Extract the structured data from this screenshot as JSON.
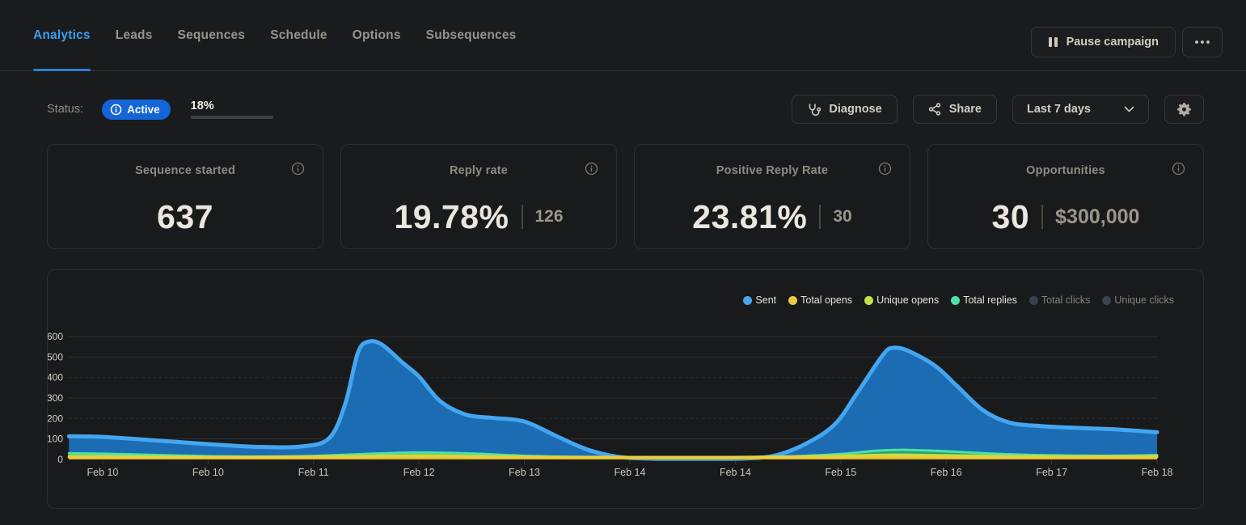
{
  "nav": {
    "tabs": [
      {
        "label": "Analytics",
        "active": true
      },
      {
        "label": "Leads",
        "active": false
      },
      {
        "label": "Sequences",
        "active": false
      },
      {
        "label": "Schedule",
        "active": false
      },
      {
        "label": "Options",
        "active": false
      },
      {
        "label": "Subsequences",
        "active": false
      }
    ],
    "pause_button_label": "Pause campaign",
    "more_button_label": "•••"
  },
  "status_bar": {
    "label": "Status:",
    "badge_label": "Active",
    "badge_color": "#1465d8",
    "progress_text": "18%",
    "progress_value": 18,
    "progress_color": "#27a45c",
    "diagnose_label": "Diagnose",
    "share_label": "Share",
    "date_range_value": "Last 7 days"
  },
  "stats": [
    {
      "label": "Sequence started",
      "value": "637",
      "secondary": ""
    },
    {
      "label": "Reply rate",
      "value": "19.78%",
      "secondary": "126"
    },
    {
      "label": "Positive Reply Rate",
      "value": "23.81%",
      "secondary": "30"
    },
    {
      "label": "Opportunities",
      "value": "30",
      "secondary": "$300,000"
    }
  ],
  "icons": {
    "pause": "two-vertical-bars",
    "more": "ellipsis",
    "info": "circled-i",
    "diagnose": "stethoscope",
    "share": "share-nodes",
    "chevron": "chevron-down",
    "gear": "gear"
  },
  "chart_data": {
    "type": "area",
    "title": "",
    "xlabel": "",
    "ylabel": "",
    "x_labels": [
      "Feb 10",
      "Feb 10",
      "Feb 11",
      "Feb 12",
      "Feb 13",
      "Feb 14",
      "Feb 14",
      "Feb 15",
      "Feb 16",
      "Feb 17",
      "Feb 18"
    ],
    "ylim": [
      0,
      600
    ],
    "yticks": [
      0,
      100,
      200,
      300,
      400,
      500,
      600
    ],
    "grid": true,
    "legend_position": "top-right",
    "legend": [
      {
        "label": "Sent",
        "color": "#45a6f0",
        "active": true
      },
      {
        "label": "Total opens",
        "color": "#ecc843",
        "active": true
      },
      {
        "label": "Unique opens",
        "color": "#c6e03f",
        "active": true
      },
      {
        "label": "Total replies",
        "color": "#4be3a4",
        "active": true
      },
      {
        "label": "Total clicks",
        "color": "#39424e",
        "active": false
      },
      {
        "label": "Unique clicks",
        "color": "#39424e",
        "active": false
      }
    ],
    "series": [
      {
        "name": "Sent",
        "stroke": "#45a6f0",
        "fill": "#1c6cb4",
        "stroke_width": 5,
        "points": [
          [
            -0.32,
            113
          ],
          [
            0,
            110
          ],
          [
            0.5,
            93
          ],
          [
            1,
            75
          ],
          [
            1.5,
            61
          ],
          [
            1.9,
            64
          ],
          [
            2.15,
            105
          ],
          [
            2.3,
            270
          ],
          [
            2.42,
            520
          ],
          [
            2.52,
            575
          ],
          [
            2.65,
            560
          ],
          [
            2.85,
            470
          ],
          [
            3,
            405
          ],
          [
            3.2,
            285
          ],
          [
            3.45,
            218
          ],
          [
            3.7,
            203
          ],
          [
            4,
            185
          ],
          [
            4.3,
            115
          ],
          [
            4.6,
            48
          ],
          [
            4.9,
            12
          ],
          [
            5.2,
            4
          ],
          [
            5.6,
            3
          ],
          [
            6.1,
            5
          ],
          [
            6.4,
            22
          ],
          [
            6.7,
            85
          ],
          [
            6.95,
            175
          ],
          [
            7.15,
            320
          ],
          [
            7.4,
            510
          ],
          [
            7.5,
            545
          ],
          [
            7.65,
            528
          ],
          [
            7.9,
            455
          ],
          [
            8.1,
            360
          ],
          [
            8.35,
            240
          ],
          [
            8.6,
            180
          ],
          [
            8.9,
            163
          ],
          [
            9.3,
            153
          ],
          [
            9.6,
            147
          ],
          [
            10,
            133
          ]
        ]
      },
      {
        "name": "Total replies",
        "stroke": "#4be3a4",
        "fill": "#27a277",
        "stroke_width": 3,
        "points": [
          [
            -0.32,
            30
          ],
          [
            0,
            28
          ],
          [
            0.5,
            22
          ],
          [
            1,
            16
          ],
          [
            1.5,
            14
          ],
          [
            2,
            17
          ],
          [
            2.5,
            27
          ],
          [
            3,
            34
          ],
          [
            3.5,
            29
          ],
          [
            4,
            18
          ],
          [
            4.5,
            11
          ],
          [
            5,
            8
          ],
          [
            5.5,
            7
          ],
          [
            6,
            8
          ],
          [
            6.5,
            14
          ],
          [
            7,
            27
          ],
          [
            7.35,
            43
          ],
          [
            7.6,
            47
          ],
          [
            8,
            40
          ],
          [
            8.5,
            27
          ],
          [
            9,
            20
          ],
          [
            9.5,
            18
          ],
          [
            10,
            21
          ]
        ]
      },
      {
        "name": "Unique opens",
        "stroke": "#c6e03f",
        "fill": "#9fb32f",
        "stroke_width": 3,
        "points": [
          [
            -0.32,
            17
          ],
          [
            0.5,
            14
          ],
          [
            1,
            13
          ],
          [
            1.7,
            14
          ],
          [
            2.5,
            17
          ],
          [
            3,
            20
          ],
          [
            3.5,
            17
          ],
          [
            4,
            14
          ],
          [
            5,
            12
          ],
          [
            6,
            12
          ],
          [
            6.8,
            16
          ],
          [
            7.5,
            23
          ],
          [
            8,
            20
          ],
          [
            8.6,
            16
          ],
          [
            9.3,
            15
          ],
          [
            10,
            16
          ]
        ]
      },
      {
        "name": "Total opens",
        "stroke": "#eccc42",
        "fill": "#d9b51f",
        "stroke_width": 3,
        "points": [
          [
            -0.32,
            11
          ],
          [
            1,
            10
          ],
          [
            2,
            11
          ],
          [
            3,
            13
          ],
          [
            4,
            11
          ],
          [
            5,
            10
          ],
          [
            6,
            10
          ],
          [
            7,
            12
          ],
          [
            7.5,
            13
          ],
          [
            8,
            12
          ],
          [
            9,
            11
          ],
          [
            10,
            12
          ]
        ]
      }
    ]
  }
}
